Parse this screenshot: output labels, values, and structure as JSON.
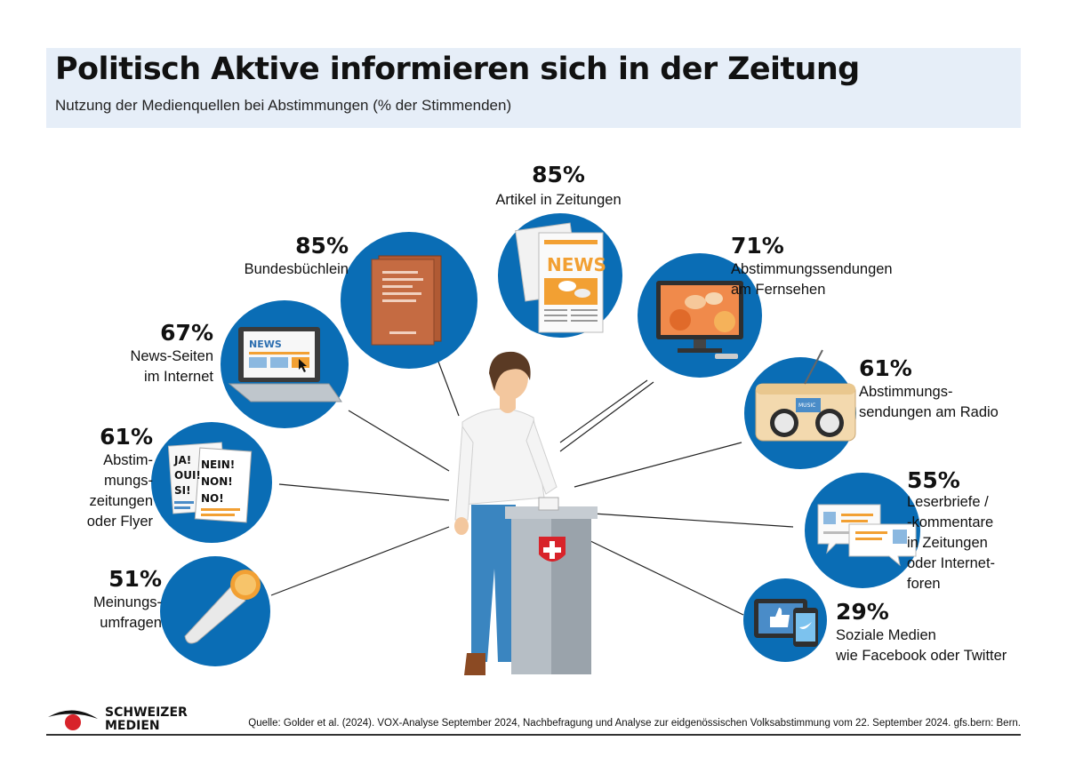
{
  "header": {
    "title": "Politisch Aktive informieren sich in der Zeitung",
    "subtitle": "Nutzung der Medienquellen bei Abstimmungen (% der Stimmenden)"
  },
  "chart_data": {
    "type": "bar",
    "title": "Politisch Aktive informieren sich in der Zeitung",
    "subtitle": "Nutzung der Medienquellen bei Abstimmungen (% der Stimmenden)",
    "unit": "%",
    "categories": [
      "Artikel in Zeitungen",
      "Bundesbüchlein",
      "Abstimmungssendungen am Fernsehen",
      "News-Seiten im Internet",
      "Abstimmungssendungen am Radio",
      "Abstimmungszeitungen oder Flyer",
      "Leserbriefe / -kommentare in Zeitungen oder Internetforen",
      "Meinungsumfragen",
      "Soziale Medien wie Facebook oder Twitter"
    ],
    "values": [
      85,
      85,
      71,
      67,
      61,
      61,
      55,
      51,
      29
    ]
  },
  "items": [
    {
      "percent": "85%",
      "lines": [
        "Artikel in Zeitungen"
      ],
      "icon": "newspaper-icon"
    },
    {
      "percent": "85%",
      "lines": [
        "Bundesbüchlein"
      ],
      "icon": "booklet-icon"
    },
    {
      "percent": "71%",
      "lines": [
        "Abstimmungssendungen",
        "am Fernsehen"
      ],
      "icon": "television-icon"
    },
    {
      "percent": "67%",
      "lines": [
        "News-Seiten",
        "im Internet"
      ],
      "icon": "laptop-icon"
    },
    {
      "percent": "61%",
      "lines": [
        "Abstimmungs-",
        "sendungen am Radio"
      ],
      "icon": "radio-icon"
    },
    {
      "percent": "61%",
      "lines": [
        "Abstim-",
        "mungs-",
        "zeitungen",
        "oder Flyer"
      ],
      "icon": "flyer-icon"
    },
    {
      "percent": "55%",
      "lines": [
        "Leserbriefe /",
        "-kommentare",
        "in Zeitungen",
        "oder Internet-",
        "foren"
      ],
      "icon": "comments-icon"
    },
    {
      "percent": "51%",
      "lines": [
        "Meinungs-",
        "umfragen"
      ],
      "icon": "microphone-icon"
    },
    {
      "percent": "29%",
      "lines": [
        "Soziale Medien",
        "wie Facebook oder Twitter"
      ],
      "icon": "social-media-icon"
    }
  ],
  "flyer_text": {
    "left": [
      "JA!",
      "OUI!",
      "SI!"
    ],
    "right": [
      "NEIN!",
      "NON!",
      "NO!"
    ]
  },
  "laptop_text": "NEWS",
  "newspaper_text": "NEWS",
  "radio_text": [
    "MUSIC",
    "MUSIC"
  ],
  "footer": {
    "logo_lines": [
      "SCHWEIZER",
      "MEDIEN"
    ],
    "source": "Quelle: Golder et al. (2024). VOX-Analyse September 2024, Nachbefragung und Analyse zur eidgenössischen Volksabstimmung vom 22. September 2024. gfs.bern: Bern."
  },
  "colors": {
    "circle_blue": "#0a6db5",
    "header_bg": "#e6eef8",
    "orange": "#f2a033",
    "swiss_red": "#d8232a"
  }
}
